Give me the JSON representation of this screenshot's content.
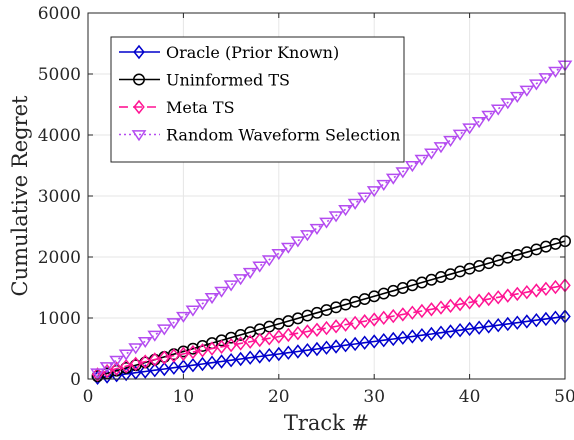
{
  "chart_data": {
    "type": "line",
    "title": "",
    "xlabel": "Track #",
    "ylabel": "Cumulative Regret",
    "xlim": [
      0,
      50
    ],
    "ylim": [
      0,
      6000
    ],
    "xticks": [
      0,
      10,
      20,
      30,
      40,
      50
    ],
    "yticks": [
      0,
      1000,
      2000,
      3000,
      4000,
      5000,
      6000
    ],
    "grid": true,
    "legend_position": "top-left",
    "x": [
      1,
      2,
      3,
      4,
      5,
      6,
      7,
      8,
      9,
      10,
      11,
      12,
      13,
      14,
      15,
      16,
      17,
      18,
      19,
      20,
      21,
      22,
      23,
      24,
      25,
      26,
      27,
      28,
      29,
      30,
      31,
      32,
      33,
      34,
      35,
      36,
      37,
      38,
      39,
      40,
      41,
      42,
      43,
      44,
      45,
      46,
      47,
      48,
      49,
      50
    ],
    "series": [
      {
        "name": "Oracle (Prior Known)",
        "color": "#0000cc",
        "line_style": "solid",
        "marker": "diamond",
        "values": [
          20,
          41,
          62,
          82,
          103,
          123,
          144,
          164,
          185,
          205,
          226,
          246,
          267,
          287,
          308,
          328,
          349,
          369,
          390,
          410,
          431,
          451,
          472,
          492,
          513,
          533,
          554,
          574,
          595,
          615,
          636,
          656,
          677,
          697,
          718,
          738,
          759,
          779,
          800,
          820,
          841,
          861,
          882,
          902,
          923,
          943,
          964,
          984,
          1005,
          1025
        ]
      },
      {
        "name": "Uninformed TS",
        "color": "#000000",
        "line_style": "solid",
        "marker": "circle",
        "values": [
          45,
          90,
          136,
          181,
          226,
          271,
          316,
          362,
          407,
          452,
          497,
          542,
          588,
          633,
          678,
          723,
          768,
          814,
          859,
          904,
          949,
          994,
          1040,
          1085,
          1130,
          1175,
          1220,
          1266,
          1311,
          1356,
          1401,
          1446,
          1492,
          1537,
          1582,
          1627,
          1672,
          1718,
          1763,
          1808,
          1853,
          1898,
          1944,
          1989,
          2034,
          2079,
          2124,
          2170,
          2215,
          2260
        ]
      },
      {
        "name": "Meta TS",
        "color": "#ff1493",
        "line_style": "dashed",
        "marker": "diamond",
        "values": [
          75,
          130,
          170,
          210,
          248,
          285,
          320,
          352,
          383,
          412,
          441,
          470,
          499,
          527,
          555,
          583,
          611,
          639,
          667,
          695,
          723,
          751,
          779,
          807,
          835,
          863,
          891,
          919,
          947,
          975,
          1003,
          1031,
          1059,
          1087,
          1115,
          1143,
          1171,
          1199,
          1227,
          1255,
          1283,
          1311,
          1339,
          1367,
          1395,
          1423,
          1451,
          1479,
          1507,
          1535
        ]
      },
      {
        "name": "Random Waveform Selection",
        "color": "#b44cf0",
        "line_style": "dotted",
        "marker": "triangle-down",
        "values": [
          103,
          206,
          309,
          412,
          515,
          618,
          721,
          824,
          927,
          1030,
          1133,
          1236,
          1339,
          1442,
          1545,
          1648,
          1751,
          1854,
          1957,
          2060,
          2163,
          2266,
          2369,
          2472,
          2575,
          2678,
          2781,
          2884,
          2987,
          3090,
          3193,
          3296,
          3399,
          3502,
          3605,
          3708,
          3811,
          3914,
          4017,
          4120,
          4223,
          4326,
          4429,
          4532,
          4635,
          4738,
          4841,
          4944,
          5047,
          5150
        ]
      }
    ]
  }
}
